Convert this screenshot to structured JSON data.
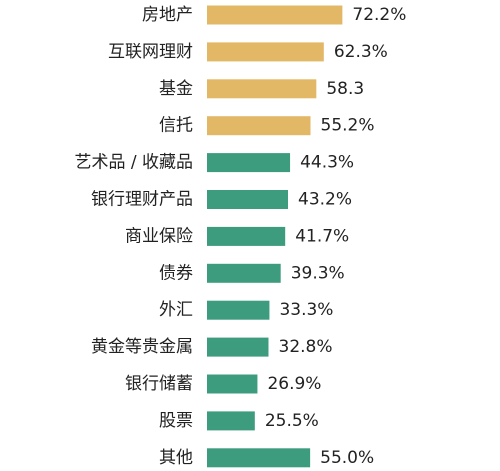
{
  "chart_data": {
    "type": "bar",
    "orientation": "horizontal",
    "categories": [
      "房地产",
      "互联网理财",
      "基金",
      "信托",
      "艺术品 / 收藏品",
      "银行理财产品",
      "商业保险",
      "债券",
      "外汇",
      "黄金等贵金属",
      "银行储蓄",
      "股票",
      "其他"
    ],
    "values": [
      72.2,
      62.3,
      58.3,
      55.2,
      44.3,
      43.2,
      41.7,
      39.3,
      33.3,
      32.8,
      26.9,
      25.5,
      55.0
    ],
    "value_labels": [
      "72.2%",
      "62.3%",
      "58.3",
      "55.2%",
      "44.3%",
      "43.2%",
      "41.7%",
      "39.3%",
      "33.3%",
      "32.8%",
      "26.9%",
      "25.5%",
      "55.0%"
    ],
    "bar_colors": [
      "#e2b866",
      "#e2b866",
      "#e2b866",
      "#e2b866",
      "#3d9c7d",
      "#3d9c7d",
      "#3d9c7d",
      "#3d9c7d",
      "#3d9c7d",
      "#3d9c7d",
      "#3d9c7d",
      "#3d9c7d",
      "#3d9c7d"
    ],
    "colors": {
      "gold": "#e2b866",
      "green": "#3d9c7d",
      "text": "#222222"
    },
    "grid": false,
    "legend": "none"
  }
}
